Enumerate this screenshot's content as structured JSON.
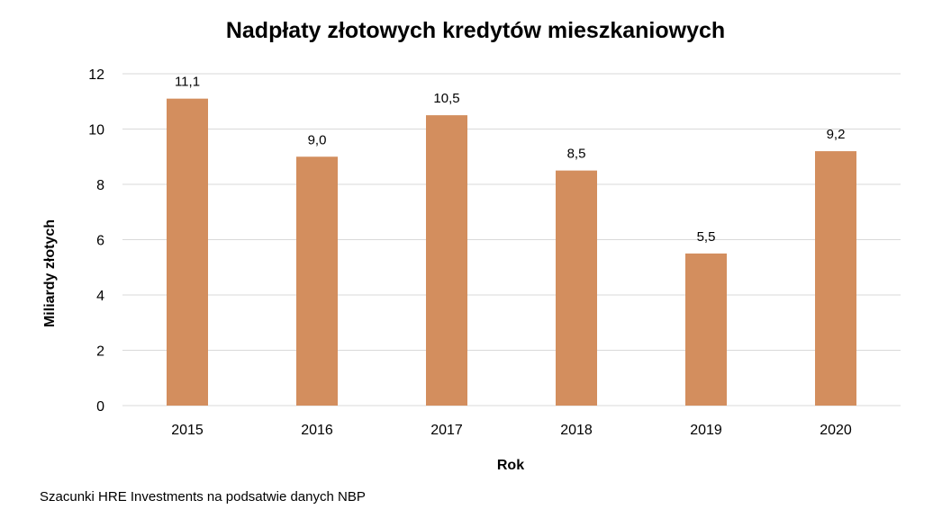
{
  "chart_data": {
    "type": "bar",
    "title": "Nadpłaty złotowych kredytów mieszkaniowych",
    "xlabel": "Rok",
    "ylabel": "Miliardy złotych",
    "categories": [
      "2015",
      "2016",
      "2017",
      "2018",
      "2019",
      "2020"
    ],
    "values": [
      11.1,
      9.0,
      10.5,
      8.5,
      5.5,
      9.2
    ],
    "data_labels": [
      "11,1",
      "9,0",
      "10,5",
      "8,5",
      "5,5",
      "9,2"
    ],
    "ylim": [
      0,
      12
    ],
    "yticks": [
      0,
      2,
      4,
      6,
      8,
      10,
      12
    ],
    "grid": true,
    "legend": "none",
    "bar_color": "#D38E5E",
    "grid_color": "#D9D9D9"
  },
  "source_note": "Szacunki HRE Investments na podsatwie danych NBP"
}
